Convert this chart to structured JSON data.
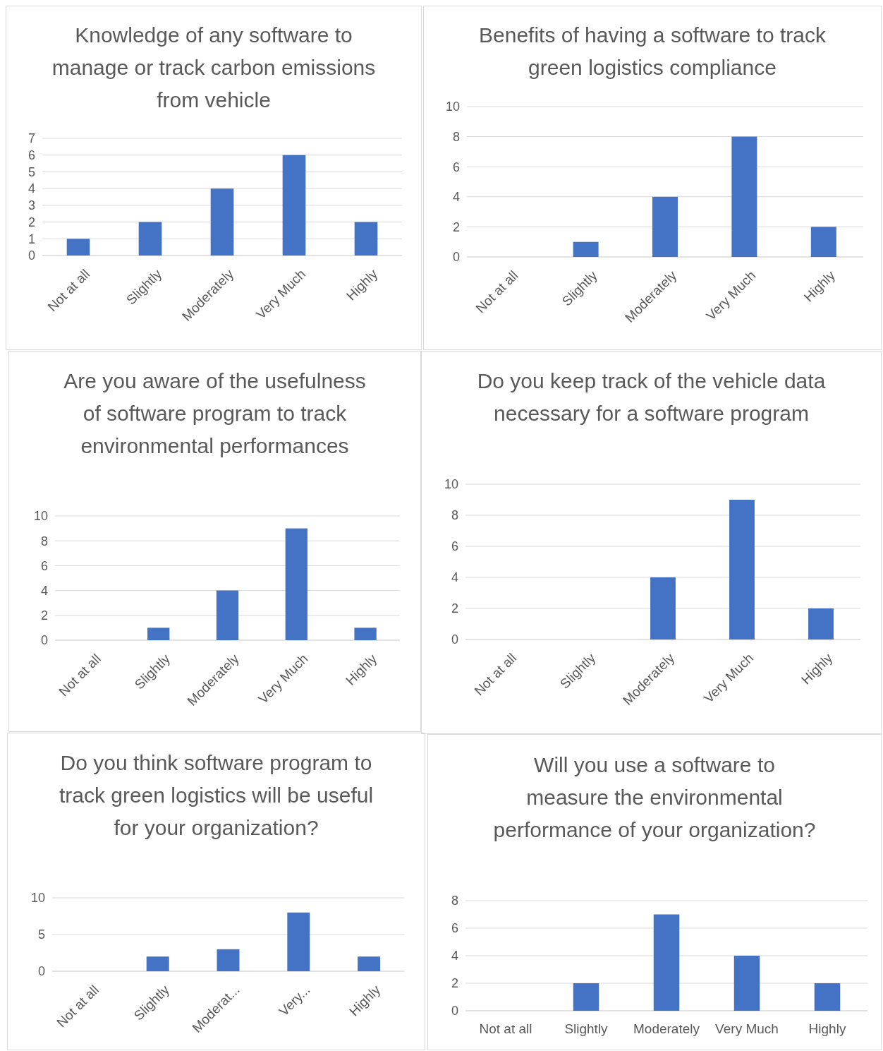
{
  "chart_data": [
    {
      "type": "bar",
      "title": "Knowledge of any software to manage or track carbon emissions from vehicle",
      "categories": [
        "Not at all",
        "Slightly",
        "Moderately",
        "Very Much",
        "Highly"
      ],
      "values": [
        1,
        2,
        4,
        6,
        2
      ],
      "color": "#4472c4",
      "ylim": [
        0,
        7
      ],
      "yticks": [
        0,
        1,
        2,
        3,
        4,
        5,
        6,
        7
      ],
      "grid": "y"
    },
    {
      "type": "bar",
      "title": "Benefits of having a software to track green logistics compliance",
      "categories": [
        "Not at all",
        "Slightly",
        "Moderately",
        "Very Much",
        "Highly"
      ],
      "values": [
        0,
        1,
        4,
        8,
        2
      ],
      "color": "#4472c4",
      "ylim": [
        0,
        10
      ],
      "yticks": [
        0,
        2,
        4,
        6,
        8,
        10
      ],
      "grid": "y"
    },
    {
      "type": "bar",
      "title": "Are you aware of the usefulness of software program to track environmental performances",
      "categories": [
        "Not at all",
        "Slightly",
        "Moderately",
        "Very Much",
        "Highly"
      ],
      "values": [
        0,
        1,
        4,
        9,
        1
      ],
      "color": "#4472c4",
      "ylim": [
        0,
        10
      ],
      "yticks": [
        0,
        2,
        4,
        6,
        8,
        10
      ],
      "grid": "y"
    },
    {
      "type": "bar",
      "title": "Do you keep track of the vehicle data necessary for a software program",
      "categories": [
        "Not at all",
        "Slightly",
        "Moderately",
        "Very Much",
        "Highly"
      ],
      "values": [
        0,
        0,
        4,
        9,
        2
      ],
      "color": "#4472c4",
      "ylim": [
        0,
        10
      ],
      "yticks": [
        0,
        2,
        4,
        6,
        8,
        10
      ],
      "grid": "y"
    },
    {
      "type": "bar",
      "title": "Do you think software program to track green logistics will be useful for your organization?",
      "categories": [
        "Not at all",
        "Slightly",
        "Moderat...",
        "Very...",
        "Highly"
      ],
      "values": [
        0,
        2,
        3,
        8,
        2
      ],
      "color": "#4472c4",
      "ylim": [
        0,
        10
      ],
      "yticks": [
        0,
        5,
        10
      ],
      "grid": "y"
    },
    {
      "type": "bar",
      "title": "Will you use a software to measure the environmental performance of your organization?",
      "categories": [
        "Not at all",
        "Slightly",
        "Moderately",
        "Very Much",
        "Highly"
      ],
      "values": [
        0,
        2,
        7,
        4,
        2
      ],
      "color": "#4472c4",
      "ylim": [
        0,
        8
      ],
      "yticks": [
        0,
        2,
        4,
        6,
        8
      ],
      "grid": "y"
    }
  ]
}
